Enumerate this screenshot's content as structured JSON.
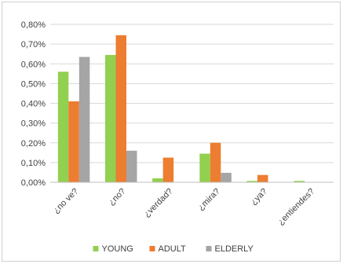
{
  "chart_data": {
    "type": "bar",
    "categories": [
      "¿no ve?",
      "¿no?",
      "¿verdad?",
      "¿mira?",
      "¿ya?",
      "¿entiendes?"
    ],
    "series": [
      {
        "name": "YOUNG",
        "color": "#92d050",
        "values": [
          0.56,
          0.645,
          0.02,
          0.145,
          0.007,
          0.007
        ]
      },
      {
        "name": "ADULT",
        "color": "#ed7d31",
        "values": [
          0.41,
          0.745,
          0.125,
          0.2,
          0.037,
          0.0
        ]
      },
      {
        "name": "ELDERLY",
        "color": "#a5a5a5",
        "values": [
          0.635,
          0.16,
          0.0,
          0.048,
          0.0,
          0.0
        ]
      }
    ],
    "yticks": [
      "0,00%",
      "0,10%",
      "0,20%",
      "0,30%",
      "0,40%",
      "0,50%",
      "0,60%",
      "0,70%",
      "0,80%"
    ],
    "ylim": [
      0,
      0.8
    ],
    "y_unit": "%",
    "grid": true,
    "legend": "bottom",
    "title": "",
    "xlabel": "",
    "ylabel": ""
  }
}
